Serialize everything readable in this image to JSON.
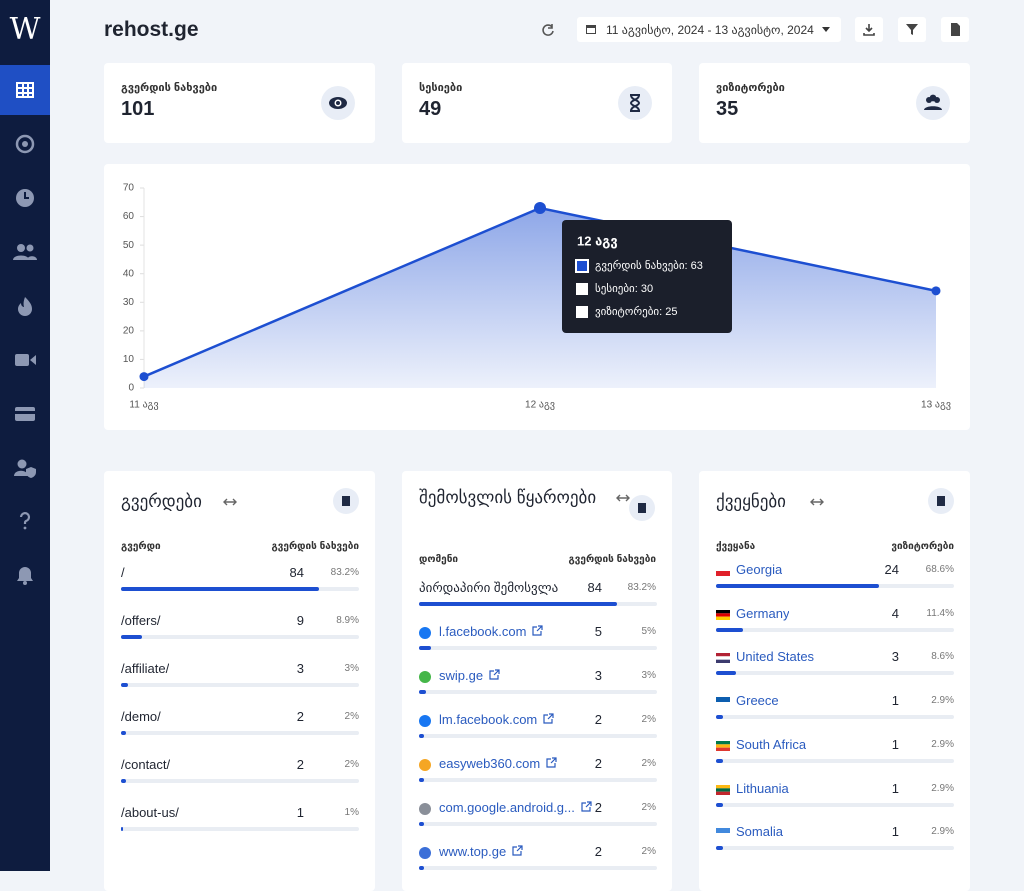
{
  "sidebar": {
    "logo": "W"
  },
  "header": {
    "site": "rehost.ge",
    "date_range": "11 აგვისტო, 2024 - 13 აგვისტო, 2024"
  },
  "stats": [
    {
      "label": "გვერდის ნახვები",
      "value": 101
    },
    {
      "label": "სესიები",
      "value": 49
    },
    {
      "label": "ვიზიტორები",
      "value": 35
    }
  ],
  "chart": {
    "type": "line",
    "categories": [
      "11 აგვ",
      "12 აგვ",
      "13 აგვ"
    ],
    "series": [
      {
        "name": "გვერდის ნახვები",
        "color": "#1d4fd1",
        "values": [
          4,
          63,
          34
        ]
      }
    ],
    "ylim": [
      0,
      70
    ],
    "yticks": [
      0,
      10,
      20,
      30,
      40,
      50,
      60,
      70
    ],
    "tooltip": {
      "items": [
        "გვერდის ნახვები: 63",
        "სესიები: 30",
        "ვიზიტორები: 25"
      ]
    }
  },
  "tables": [
    {
      "title": "გვერდები",
      "columns": [
        "გვერდი",
        "გვერდის ნახვები"
      ],
      "rows": [
        {
          "label": "/",
          "value": 84,
          "share": 83.2,
          "share_label": "83.2%"
        },
        {
          "label": "/offers/",
          "value": 9,
          "share": 8.9,
          "share_label": "8.9%"
        },
        {
          "label": "/affiliate/",
          "value": 3,
          "share": 3,
          "share_label": "3%"
        },
        {
          "label": "/demo/",
          "value": 2,
          "share": 2,
          "share_label": "2%"
        },
        {
          "label": "/contact/",
          "value": 2,
          "share": 2,
          "share_label": "2%"
        },
        {
          "label": "/about-us/",
          "value": 1,
          "share": 1,
          "share_label": "1%"
        }
      ]
    },
    {
      "title": "შემოსვლის წყაროები",
      "columns": [
        "დომენი",
        "გვერდის ნახვები"
      ],
      "rows": [
        {
          "label": "პირდაპირი შემოსვლა",
          "value": 84,
          "share": 83.2,
          "share_label": "83.2%"
        },
        {
          "label": "l.facebook.com",
          "value": 5,
          "share": 5,
          "share_label": "5%"
        },
        {
          "label": "swip.ge",
          "value": 3,
          "share": 3,
          "share_label": "3%"
        },
        {
          "label": "lm.facebook.com",
          "value": 2,
          "share": 2,
          "share_label": "2%"
        },
        {
          "label": "easyweb360.com",
          "value": 2,
          "share": 2,
          "share_label": "2%"
        },
        {
          "label": "com.google.android.g...",
          "value": 2,
          "share": 2,
          "share_label": "2%"
        },
        {
          "label": "www.top.ge",
          "value": 2,
          "share": 2,
          "share_label": "2%"
        }
      ]
    },
    {
      "title": "ქვეყნები",
      "columns": [
        "ქვეყანა",
        "ვიზიტორები"
      ],
      "rows": [
        {
          "label": "Georgia",
          "value": 24,
          "share": 68.6,
          "share_label": "68.6%"
        },
        {
          "label": "Germany",
          "value": 4,
          "share": 11.4,
          "share_label": "11.4%"
        },
        {
          "label": "United States",
          "value": 3,
          "share": 8.6,
          "share_label": "8.6%"
        },
        {
          "label": "Greece",
          "value": 1,
          "share": 2.9,
          "share_label": "2.9%"
        },
        {
          "label": "South Africa",
          "value": 1,
          "share": 2.9,
          "share_label": "2.9%"
        },
        {
          "label": "Lithuania",
          "value": 1,
          "share": 2.9,
          "share_label": "2.9%"
        },
        {
          "label": "Somalia",
          "value": 1,
          "share": 2.9,
          "share_label": "2.9%"
        }
      ]
    }
  ]
}
